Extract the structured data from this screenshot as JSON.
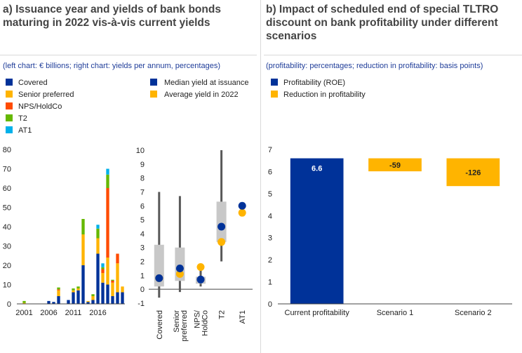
{
  "panel_a": {
    "title_line1": "a) Issuance year and yields of bank bonds",
    "title_line2": "maturing in 2022 vis-à-vis current yields",
    "subtitle": "(left chart: € billions; right chart: yields per annum, percentages)"
  },
  "panel_b": {
    "title_line1": "b) Impact of scheduled end of special TLTRO",
    "title_line2": "discount on bank profitability under different",
    "title_line3": "scenarios",
    "subtitle": "(profitability: percentages; reduction in profitability: basis points)"
  },
  "colors": {
    "navy": "#003299",
    "orange": "#ffb400",
    "red": "#ff4b00",
    "green": "#65b800",
    "cyan": "#00b1ea",
    "box": "#c8c8c8",
    "whisker": "#595959"
  },
  "chart_data": [
    {
      "type": "bar",
      "stacked": true,
      "ylim": [
        0,
        80
      ],
      "yticks": [
        "0",
        "10",
        "20",
        "30",
        "40",
        "50",
        "60",
        "70",
        "80"
      ],
      "xtick_labels": [
        "2001",
        "2006",
        "2011",
        "2016"
      ],
      "legend": [
        "Covered",
        "Senior preferred",
        "NPS/HoldCo",
        "T2",
        "AT1"
      ],
      "categories": [
        "2000",
        "2001",
        "2002",
        "2003",
        "2004",
        "2005",
        "2006",
        "2007",
        "2008",
        "2009",
        "2010",
        "2011",
        "2012",
        "2013",
        "2014",
        "2015",
        "2016",
        "2017",
        "2018",
        "2019",
        "2020",
        "2021"
      ],
      "series": [
        {
          "name": "Covered",
          "values": [
            0,
            0,
            0,
            0,
            0,
            0,
            1.5,
            1,
            4,
            0,
            2,
            6,
            7,
            20,
            1,
            2,
            26,
            11,
            10,
            4,
            6,
            6
          ]
        },
        {
          "name": "Senior preferred",
          "values": [
            0,
            0.5,
            0,
            0,
            0,
            0,
            0,
            0,
            3,
            0,
            0,
            1,
            1,
            16,
            0.5,
            2,
            8,
            5,
            14,
            7,
            15,
            3
          ]
        },
        {
          "name": "NPS/HoldCo",
          "values": [
            0,
            0,
            0,
            0,
            0,
            0,
            0,
            0,
            0.5,
            0,
            0,
            0,
            0,
            0,
            0,
            0,
            0,
            2,
            36,
            1,
            5,
            0
          ]
        },
        {
          "name": "T2",
          "values": [
            0,
            1,
            0,
            0,
            0,
            0,
            0,
            0,
            1,
            0,
            0,
            1,
            1,
            8,
            0,
            1,
            5,
            1,
            7,
            0.5,
            0,
            0
          ]
        },
        {
          "name": "AT1",
          "values": [
            0,
            0,
            0,
            0,
            0,
            0,
            0,
            0,
            0,
            0,
            0,
            0,
            0,
            0,
            0,
            0,
            2,
            2,
            3,
            0,
            0,
            0
          ]
        }
      ]
    },
    {
      "type": "box",
      "ylim": [
        -1,
        10
      ],
      "yticks": [
        "-1",
        "0",
        "1",
        "2",
        "3",
        "4",
        "5",
        "6",
        "7",
        "8",
        "9",
        "10"
      ],
      "categories": [
        "Covered",
        "Senior preferred",
        "NPS/ HoldCo",
        "T2",
        "AT1"
      ],
      "legend": [
        "Median yield at issuance",
        "Average yield in 2022"
      ],
      "boxes": [
        {
          "category": "Covered",
          "whisker_low": -0.6,
          "q1": 0.2,
          "q3": 3.2,
          "whisker_high": 7.0,
          "median_issuance": 0.8,
          "avg_2022": 0.8
        },
        {
          "category": "Senior preferred",
          "whisker_low": -0.2,
          "q1": 0.6,
          "q3": 3.0,
          "whisker_high": 6.7,
          "median_issuance": 1.5,
          "avg_2022": 1.1
        },
        {
          "category": "NPS/ HoldCo",
          "whisker_low": 0.2,
          "q1": 0.4,
          "q3": 0.9,
          "whisker_high": 1.8,
          "median_issuance": 0.7,
          "avg_2022": 1.6
        },
        {
          "category": "T2",
          "whisker_low": 2.0,
          "q1": 3.4,
          "q3": 6.3,
          "whisker_high": 10.0,
          "median_issuance": 4.5,
          "avg_2022": 3.4
        },
        {
          "category": "AT1",
          "whisker_low": null,
          "q1": null,
          "q3": null,
          "whisker_high": null,
          "median_issuance": 6.0,
          "avg_2022": 5.5
        }
      ]
    },
    {
      "type": "waterfall",
      "ylim": [
        0,
        7
      ],
      "yticks": [
        "0",
        "1",
        "2",
        "3",
        "4",
        "5",
        "6",
        "7"
      ],
      "categories": [
        "Current profitability",
        "Scenario 1",
        "Scenario 2"
      ],
      "legend": [
        "Profitability (ROE)",
        "Reduction in profitability"
      ],
      "profitability": 6.6,
      "reductions_bp": [
        -59,
        -126
      ],
      "labels": [
        "6.6",
        "-59",
        "-126"
      ]
    }
  ]
}
